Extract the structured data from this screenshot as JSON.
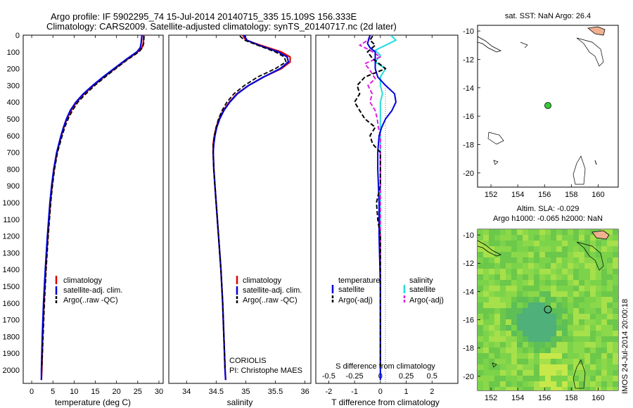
{
  "title": {
    "line1": "Argo profile: IF 5902295_74 15-Jul-2014 20140715_335 15.109S 156.333E",
    "line2": "Climatology: CARS2009. Satellite-adjusted climatology: synTS_20140717.nc (2d later)"
  },
  "colors": {
    "climatology": "#e00000",
    "satellite": "#0000dd",
    "argo": "#000000",
    "sat_salinity": "#22dddd",
    "argo_salinity": "#dd22dd",
    "land": "#f0b090",
    "float_marker": "#33cc33"
  },
  "depth_ticks": [
    "0",
    "100",
    "200",
    "300",
    "400",
    "500",
    "600",
    "700",
    "800",
    "900",
    "1000",
    "1100",
    "1200",
    "1300",
    "1400",
    "1500",
    "1600",
    "1700",
    "1800",
    "1900",
    "2000"
  ],
  "panels": {
    "temperature": {
      "xlabel": "temperature (deg C)",
      "xticks": [
        "0",
        "5",
        "10",
        "15",
        "20",
        "25",
        "30"
      ],
      "legend": [
        "climatology",
        "satellite-adj. clim.",
        "Argo(..raw -QC)"
      ]
    },
    "salinity": {
      "xlabel": "salinity",
      "xticks": [
        "34",
        "34.5",
        "35",
        "35.5",
        "36"
      ],
      "legend": [
        "climatology",
        "satellite-adj. clim.",
        "Argo(..raw -QC)"
      ],
      "note1": "CORIOLIS",
      "note2": "PI: Christophe MAES"
    },
    "difference": {
      "xlabel": "T difference from climatology",
      "xlabel2": "S difference from climatology",
      "xticks_T": [
        "-2",
        "-1",
        "0",
        "1",
        "2"
      ],
      "xticks_S": [
        "-0.5",
        "-0.25",
        "0",
        "0.25",
        "0.5"
      ],
      "legend_head_T": "temperature",
      "legend_head_S": "salinity",
      "legend_T": [
        "satellite",
        "Argo(-adj)"
      ],
      "legend_S": [
        "satellite",
        "Argo(-adj)"
      ]
    }
  },
  "map_sst": {
    "title": "sat. SST: NaN Argo: 26.4",
    "yticks": [
      "-10",
      "-12",
      "-14",
      "-16",
      "-18",
      "-20"
    ],
    "xticks": [
      "152",
      "154",
      "156",
      "158",
      "160"
    ]
  },
  "map_sla": {
    "title1": "Altim. SLA: -0.029",
    "title2": "Argo h1000: -0.065 h2000: NaN",
    "yticks": [
      "-10",
      "-12",
      "-14",
      "-16",
      "-18",
      "-20"
    ],
    "xticks": [
      "152",
      "154",
      "156",
      "158",
      "160"
    ]
  },
  "credit": "IMOS 24-Jul-2014 20:00:18",
  "chart_data": [
    {
      "type": "line",
      "xlabel": "temperature (deg C)",
      "ylabel": "",
      "xlim": [
        -2,
        31
      ],
      "ylim": [
        2080,
        0
      ],
      "y_inverted": true,
      "series": [
        {
          "name": "climatology",
          "depth": [
            0,
            50,
            75,
            100,
            150,
            200,
            250,
            300,
            350,
            400,
            450,
            500,
            550,
            600,
            700,
            800,
            900,
            1000,
            1200,
            1400,
            1600,
            1800,
            2000,
            2060
          ],
          "values": [
            26.4,
            26.3,
            26.0,
            25.0,
            22.2,
            19.6,
            17.0,
            14.6,
            12.4,
            10.6,
            9.3,
            8.3,
            7.6,
            7.0,
            6.0,
            5.3,
            4.8,
            4.4,
            3.8,
            3.3,
            2.9,
            2.6,
            2.4,
            2.3
          ]
        },
        {
          "name": "satellite-adj. clim.",
          "depth": [
            0,
            50,
            75,
            100,
            150,
            200,
            250,
            300,
            350,
            400,
            450,
            500,
            550,
            600,
            700,
            800,
            900,
            1000,
            1200,
            1400,
            1600,
            1800,
            2000,
            2060
          ],
          "values": [
            26.0,
            25.8,
            25.6,
            24.8,
            22.0,
            19.4,
            16.8,
            14.4,
            12.2,
            10.4,
            9.1,
            8.2,
            7.5,
            6.9,
            5.9,
            5.2,
            4.7,
            4.3,
            3.7,
            3.2,
            2.8,
            2.5,
            2.3,
            2.3
          ]
        },
        {
          "name": "Argo(..raw -QC)",
          "depth": [
            5,
            50,
            75,
            100,
            150,
            200,
            250,
            300,
            350,
            400,
            450,
            500,
            550,
            600,
            700,
            800,
            900,
            1000,
            1200,
            1400,
            1600,
            1800,
            1990
          ],
          "values": [
            26.5,
            26.4,
            26.1,
            25.3,
            22.4,
            19.8,
            17.3,
            14.9,
            12.8,
            10.9,
            9.6,
            8.6,
            7.8,
            7.2,
            6.1,
            5.4,
            4.9,
            4.5,
            3.9,
            3.4,
            3.0,
            2.7,
            2.4
          ]
        }
      ]
    },
    {
      "type": "line",
      "xlabel": "salinity",
      "ylabel": "",
      "xlim": [
        33.7,
        36.1
      ],
      "ylim": [
        2080,
        0
      ],
      "y_inverted": true,
      "series": [
        {
          "name": "climatology",
          "depth": [
            0,
            30,
            60,
            100,
            130,
            160,
            200,
            250,
            300,
            350,
            400,
            450,
            500,
            550,
            600,
            650,
            700,
            800,
            900,
            1000,
            1200,
            1400,
            1600,
            1800,
            2000,
            2060
          ],
          "values": [
            34.95,
            35.0,
            35.25,
            35.6,
            35.75,
            35.75,
            35.6,
            35.3,
            35.05,
            34.85,
            34.72,
            34.62,
            34.55,
            34.5,
            34.47,
            34.45,
            34.45,
            34.46,
            34.48,
            34.5,
            34.54,
            34.58,
            34.61,
            34.63,
            34.65,
            34.66
          ]
        },
        {
          "name": "satellite-adj. clim.",
          "depth": [
            0,
            30,
            60,
            100,
            130,
            160,
            200,
            250,
            300,
            350,
            400,
            450,
            500,
            550,
            600,
            650,
            700,
            800,
            900,
            1000,
            1200,
            1400,
            1600,
            1800,
            2000,
            2060
          ],
          "values": [
            34.97,
            35.02,
            35.22,
            35.55,
            35.7,
            35.72,
            35.58,
            35.3,
            35.05,
            34.86,
            34.73,
            34.63,
            34.56,
            34.51,
            34.48,
            34.46,
            34.45,
            34.46,
            34.48,
            34.5,
            34.54,
            34.58,
            34.61,
            34.63,
            34.65,
            34.66
          ]
        },
        {
          "name": "Argo(..raw -QC)",
          "depth": [
            5,
            30,
            60,
            100,
            130,
            160,
            200,
            250,
            300,
            350,
            400,
            450,
            500,
            550,
            600,
            650,
            700,
            800,
            900,
            1000,
            1200,
            1400,
            1600,
            1800,
            1990
          ],
          "values": [
            34.9,
            34.98,
            35.2,
            35.5,
            35.65,
            35.68,
            35.5,
            35.2,
            34.98,
            34.8,
            34.68,
            34.6,
            34.54,
            34.5,
            34.47,
            34.45,
            34.45,
            34.46,
            34.48,
            34.5,
            34.54,
            34.58,
            34.61,
            34.63,
            34.65
          ]
        }
      ]
    },
    {
      "type": "line",
      "xlabel": "T difference from climatology",
      "ylabel": "",
      "xlim": [
        -2.5,
        3
      ],
      "ylim": [
        2080,
        0
      ],
      "y_inverted": true,
      "series": [
        {
          "name": "temperature satellite",
          "depth": [
            0,
            50,
            75,
            100,
            150,
            200,
            250,
            300,
            350,
            400,
            450,
            500,
            550,
            600,
            700,
            800,
            1000,
            1200,
            1500,
            1800,
            2060
          ],
          "values": [
            -0.4,
            -0.5,
            -0.4,
            -0.2,
            -0.2,
            -0.2,
            -0.1,
            0.2,
            0.55,
            0.6,
            0.45,
            0.2,
            0.05,
            -0.05,
            -0.1,
            -0.1,
            -0.05,
            -0.05,
            0.0,
            0.0,
            0.0
          ]
        },
        {
          "name": "temperature Argo(-adj)",
          "depth": [
            5,
            30,
            60,
            100,
            140,
            200,
            250,
            300,
            350,
            400,
            450,
            500,
            550,
            600,
            650,
            700,
            800,
            900,
            1000,
            1100,
            1200,
            1500,
            1800,
            1990
          ],
          "values": [
            -0.3,
            -0.4,
            -0.2,
            -0.5,
            -0.3,
            0.2,
            -0.6,
            -0.9,
            -0.8,
            -1.0,
            -0.8,
            -0.6,
            -0.2,
            -0.4,
            -0.3,
            0.0,
            0.0,
            0.0,
            -0.15,
            -0.1,
            0.0,
            0.0,
            0.0,
            0.0
          ]
        }
      ]
    },
    {
      "type": "line",
      "xlabel": "S difference from climatology",
      "ylabel": "",
      "xlim": [
        -0.625,
        0.75
      ],
      "ylim": [
        2080,
        0
      ],
      "y_inverted": true,
      "series": [
        {
          "name": "salinity satellite",
          "depth": [
            0,
            30,
            60,
            90,
            120,
            160,
            200,
            250,
            300,
            350,
            400,
            450,
            500,
            600,
            700,
            800,
            1000,
            1500,
            2060
          ],
          "values": [
            0.1,
            0.15,
            0.05,
            -0.05,
            0.0,
            -0.05,
            0.05,
            0.0,
            0.0,
            0.02,
            0.0,
            0.0,
            0.0,
            0.0,
            0.0,
            0.0,
            0.0,
            0.0,
            0.0
          ]
        },
        {
          "name": "salinity Argo(-adj)",
          "depth": [
            5,
            30,
            60,
            90,
            130,
            170,
            210,
            260,
            300,
            350,
            400,
            450,
            500,
            550,
            600,
            700,
            800,
            1000,
            1500,
            1990
          ],
          "values": [
            -0.1,
            -0.12,
            -0.2,
            -0.1,
            0.0,
            -0.15,
            -0.1,
            -0.05,
            -0.12,
            -0.08,
            -0.1,
            -0.05,
            -0.03,
            -0.02,
            0.0,
            0.0,
            0.0,
            0.0,
            0.0,
            0.0
          ]
        }
      ]
    }
  ]
}
